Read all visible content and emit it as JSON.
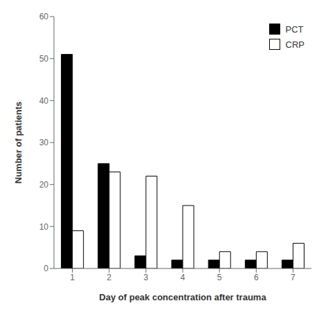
{
  "chart_data": {
    "type": "bar",
    "xlabel": "Day of peak concentration after trauma",
    "ylabel": "Number of patients",
    "categories": [
      "1",
      "2",
      "3",
      "4",
      "5",
      "6",
      "7"
    ],
    "series": [
      {
        "name": "PCT",
        "color": "#000000",
        "values": [
          51,
          25,
          3,
          2,
          2,
          2,
          2
        ]
      },
      {
        "name": "CRP",
        "color": "#ffffff",
        "values": [
          9,
          23,
          22,
          15,
          4,
          4,
          6
        ]
      }
    ],
    "ylim": [
      0,
      60
    ],
    "yticks": [
      0,
      10,
      20,
      30,
      40,
      50,
      60
    ],
    "grid": false,
    "legend": "upper right"
  }
}
